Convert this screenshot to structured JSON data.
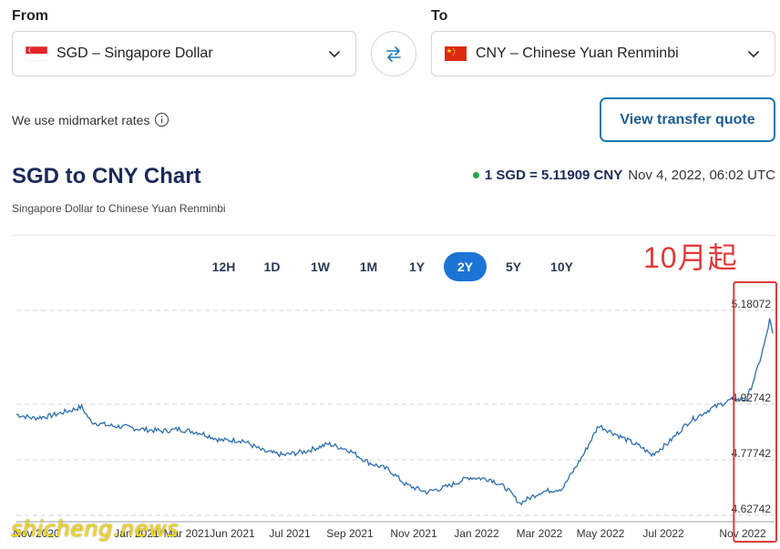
{
  "converter": {
    "from_label": "From",
    "to_label": "To",
    "from_currency": "SGD – Singapore Dollar",
    "to_currency": "CNY – Chinese Yuan Renminbi",
    "midmarket_text": "We use midmarket rates",
    "quote_button": "View transfer quote"
  },
  "header": {
    "title": "SGD to CNY Chart",
    "subtitle": "Singapore Dollar to Chinese Yuan Renminbi",
    "rate": "1 SGD = 5.11909 CNY",
    "timestamp": "Nov 4, 2022, 06:02 UTC"
  },
  "ranges": [
    {
      "label": "12H",
      "active": false
    },
    {
      "label": "1D",
      "active": false
    },
    {
      "label": "1W",
      "active": false
    },
    {
      "label": "1M",
      "active": false
    },
    {
      "label": "1Y",
      "active": false
    },
    {
      "label": "2Y",
      "active": true
    },
    {
      "label": "5Y",
      "active": false
    },
    {
      "label": "10Y",
      "active": false
    }
  ],
  "annotation": "10月起",
  "watermark": "shicheng.news",
  "colors": {
    "line": "#2f6fb0",
    "highlight": "#e03a3a",
    "active_range": "#1b74d6"
  },
  "chart_data": {
    "type": "line",
    "ylim": [
      4.62742,
      5.18072
    ],
    "yticks": [
      {
        "value": 5.18072,
        "label": "5.18072"
      },
      {
        "value": 4.92742,
        "label": "4.92742"
      },
      {
        "value": 4.77742,
        "label": "4.77742"
      },
      {
        "value": 4.62742,
        "label": "4.62742"
      }
    ],
    "xticks": [
      "Nov 2020",
      "Jan 2021",
      "Mar 2021",
      "Jun 2021",
      "Jul 2021",
      "Sep 2021",
      "Nov 2021",
      "Jan 2022",
      "Mar 2022",
      "May 2022",
      "Jul 2022",
      "Nov 2022"
    ],
    "series": [
      {
        "values": [
          {
            "x": "2020-11-04",
            "y": 4.9
          },
          {
            "x": "2020-11-20",
            "y": 4.89
          },
          {
            "x": "2020-12-05",
            "y": 4.895
          },
          {
            "x": "2020-12-25",
            "y": 4.91
          },
          {
            "x": "2021-01-06",
            "y": 4.92
          },
          {
            "x": "2021-01-15",
            "y": 4.88
          },
          {
            "x": "2021-02-01",
            "y": 4.87
          },
          {
            "x": "2021-02-20",
            "y": 4.865
          },
          {
            "x": "2021-03-05",
            "y": 4.86
          },
          {
            "x": "2021-03-25",
            "y": 4.855
          },
          {
            "x": "2021-04-10",
            "y": 4.86
          },
          {
            "x": "2021-05-01",
            "y": 4.85
          },
          {
            "x": "2021-05-20",
            "y": 4.83
          },
          {
            "x": "2021-06-10",
            "y": 4.83
          },
          {
            "x": "2021-07-01",
            "y": 4.8
          },
          {
            "x": "2021-07-20",
            "y": 4.79
          },
          {
            "x": "2021-08-10",
            "y": 4.8
          },
          {
            "x": "2021-09-01",
            "y": 4.82
          },
          {
            "x": "2021-09-20",
            "y": 4.805
          },
          {
            "x": "2021-10-10",
            "y": 4.77
          },
          {
            "x": "2021-10-30",
            "y": 4.75
          },
          {
            "x": "2021-11-15",
            "y": 4.71
          },
          {
            "x": "2021-12-05",
            "y": 4.69
          },
          {
            "x": "2021-12-25",
            "y": 4.705
          },
          {
            "x": "2022-01-15",
            "y": 4.73
          },
          {
            "x": "2022-02-05",
            "y": 4.725
          },
          {
            "x": "2022-02-20",
            "y": 4.7
          },
          {
            "x": "2022-03-05",
            "y": 4.66
          },
          {
            "x": "2022-03-25",
            "y": 4.69
          },
          {
            "x": "2022-04-15",
            "y": 4.7
          },
          {
            "x": "2022-05-05",
            "y": 4.79
          },
          {
            "x": "2022-05-20",
            "y": 4.87
          },
          {
            "x": "2022-06-10",
            "y": 4.84
          },
          {
            "x": "2022-07-01",
            "y": 4.81
          },
          {
            "x": "2022-07-10",
            "y": 4.79
          },
          {
            "x": "2022-07-25",
            "y": 4.82
          },
          {
            "x": "2022-08-15",
            "y": 4.88
          },
          {
            "x": "2022-09-05",
            "y": 4.915
          },
          {
            "x": "2022-09-25",
            "y": 4.94
          },
          {
            "x": "2022-10-10",
            "y": 4.94
          },
          {
            "x": "2022-10-20",
            "y": 5.02
          },
          {
            "x": "2022-10-28",
            "y": 5.1
          },
          {
            "x": "2022-11-01",
            "y": 5.155
          },
          {
            "x": "2022-11-04",
            "y": 5.11909
          }
        ]
      }
    ],
    "grid": "dashed horizontal",
    "highlight_region": {
      "from": "2022-10-01",
      "to": "2022-11-04"
    }
  }
}
